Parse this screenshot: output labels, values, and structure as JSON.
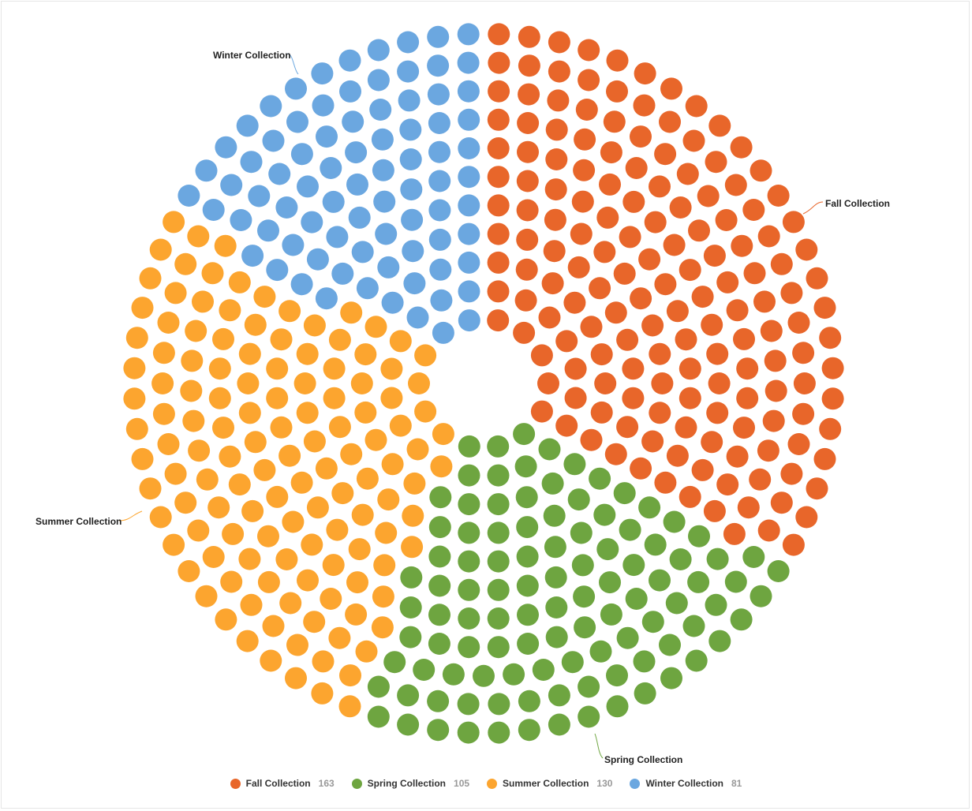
{
  "chart_data": {
    "type": "item",
    "layout": "full circle donut of dots, clockwise from top",
    "series": [
      {
        "name": "Fall Collection",
        "value": 163,
        "color": "#e8662a"
      },
      {
        "name": "Spring Collection",
        "value": 105,
        "color": "#6ea540"
      },
      {
        "name": "Summer Collection",
        "value": 130,
        "color": "#fca52f"
      },
      {
        "name": "Winter Collection",
        "value": 81,
        "color": "#6ba7e0"
      }
    ],
    "legend": "bottom"
  }
}
